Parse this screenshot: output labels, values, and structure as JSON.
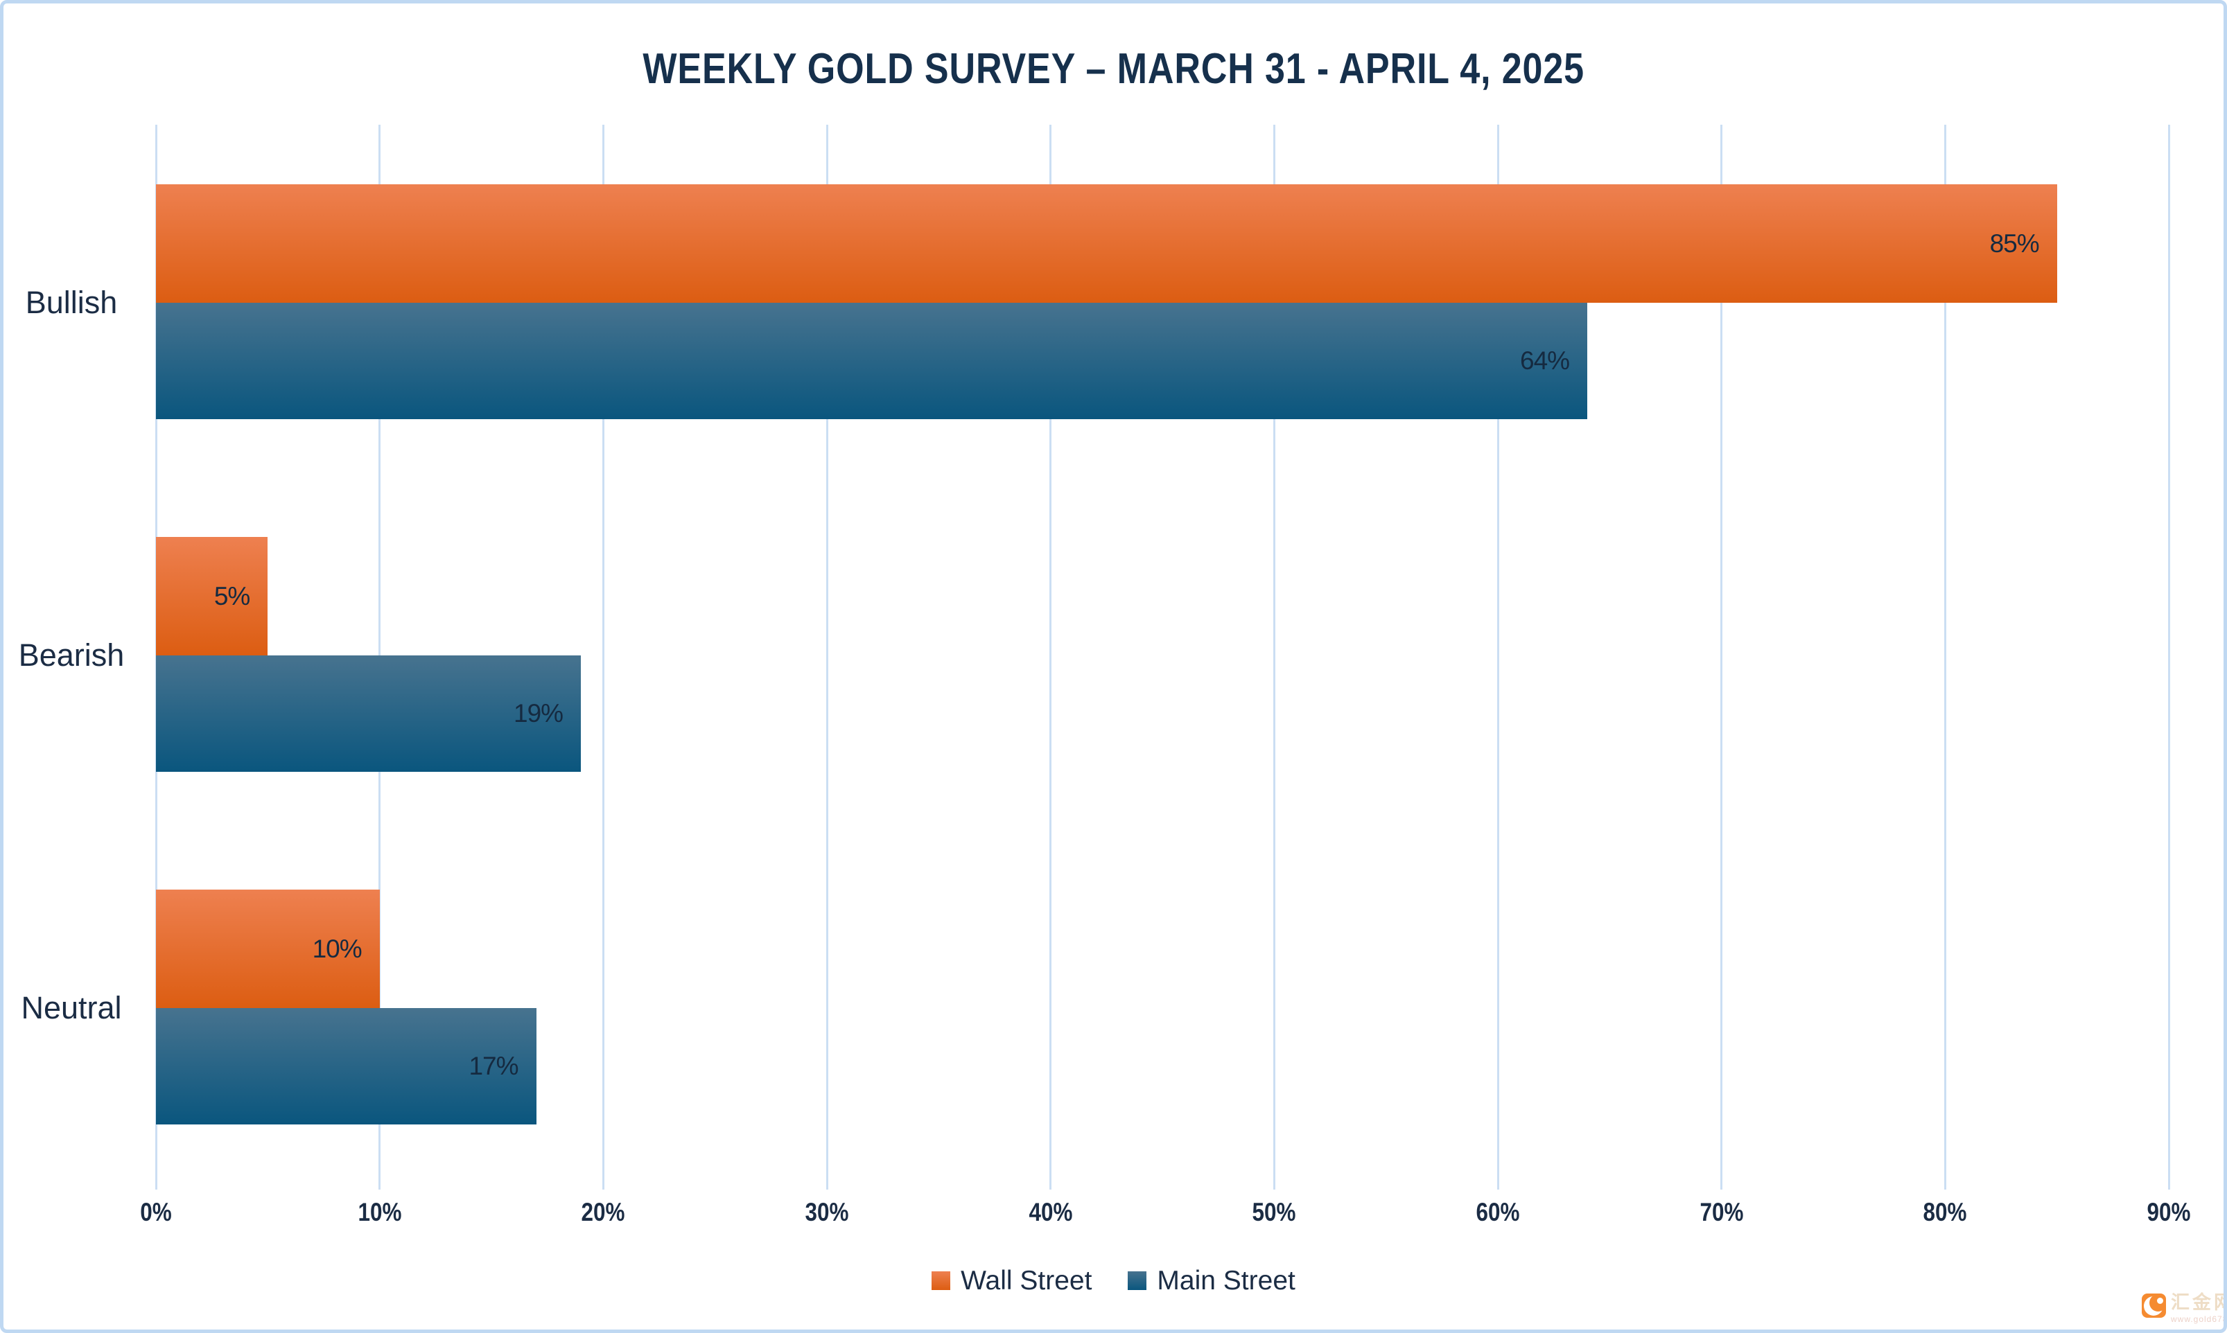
{
  "chart_data": {
    "type": "bar",
    "orientation": "horizontal",
    "title": "WEEKLY GOLD SURVEY – MARCH 31 - APRIL 4, 2025",
    "categories": [
      "Bullish",
      "Bearish",
      "Neutral"
    ],
    "series": [
      {
        "name": "Wall Street",
        "values": [
          85,
          5,
          10
        ],
        "unit": "%",
        "color_top": "#EE8050",
        "color_bottom": "#DC5D12"
      },
      {
        "name": "Main Street",
        "values": [
          64,
          19,
          17
        ],
        "unit": "%",
        "color_top": "#47738F",
        "color_bottom": "#0A567E"
      }
    ],
    "x_axis": {
      "min": 0,
      "max": 90,
      "tick_step": 10,
      "tick_labels": [
        "0%",
        "10%",
        "20%",
        "30%",
        "40%",
        "50%",
        "60%",
        "70%",
        "80%",
        "90%"
      ]
    },
    "grid": true,
    "legend_position": "bottom",
    "data_label_position": "inside-end"
  },
  "watermark": {
    "site_name": "汇金网",
    "url": "www.gold678.com"
  },
  "colors": {
    "text_navy": "#1B2C44",
    "title_navy": "#16304C",
    "gridline": "#CBDEF3",
    "frame_border": "#BFD8F2",
    "background": "#FFFFFF",
    "wall_street_orange": "#E8742F",
    "main_street_blue": "#2E6886"
  }
}
